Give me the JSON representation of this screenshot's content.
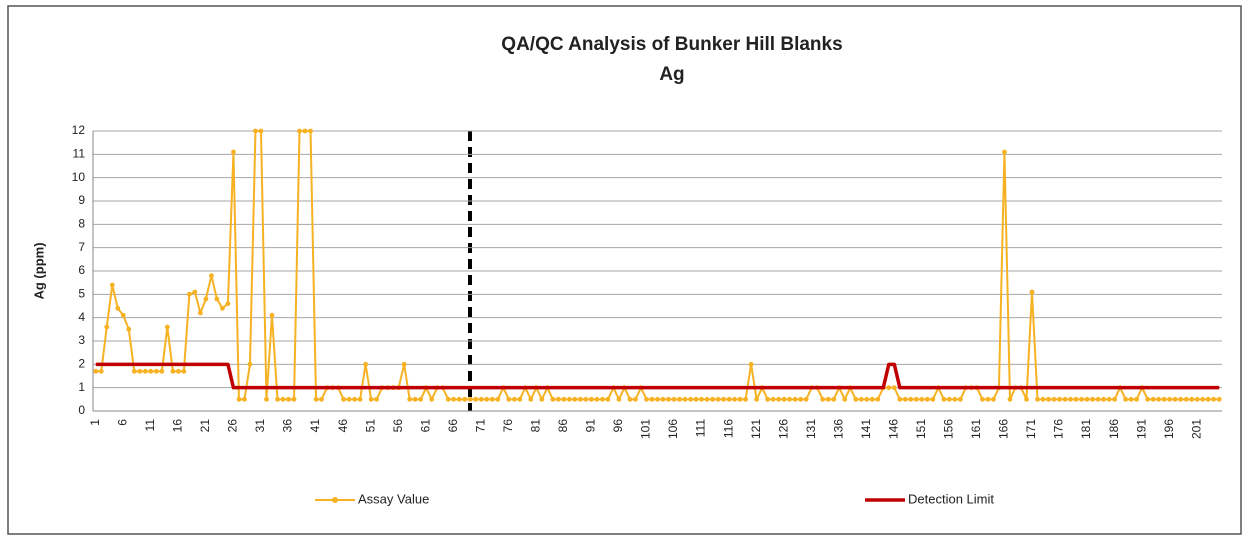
{
  "chart_data": {
    "type": "line",
    "title": "QA/QC Analysis of Bunker Hill Blanks",
    "subtitle": "Ag",
    "y_label": "Ag (ppm)",
    "ylim": [
      0,
      12
    ],
    "yticks": [
      0,
      1,
      2,
      3,
      4,
      5,
      6,
      7,
      8,
      9,
      10,
      11,
      12
    ],
    "grid": true,
    "legend": "bottom",
    "categories": [
      1,
      null,
      null,
      null,
      null,
      6,
      null,
      null,
      null,
      null,
      11,
      null,
      null,
      null,
      null,
      16,
      null,
      null,
      null,
      null,
      21,
      null,
      null,
      null,
      null,
      26,
      null,
      null,
      null,
      null,
      31,
      null,
      null,
      null,
      null,
      36,
      null,
      null,
      null,
      null,
      41,
      null,
      null,
      null,
      null,
      46,
      null,
      null,
      null,
      null,
      51,
      null,
      null,
      null,
      null,
      56,
      null,
      null,
      null,
      null,
      61,
      null,
      null,
      null,
      null,
      66,
      null,
      null,
      null,
      null,
      71,
      null,
      null,
      null,
      null,
      76,
      null,
      null,
      null,
      null,
      81,
      null,
      null,
      null,
      null,
      86,
      null,
      null,
      null,
      null,
      91,
      null,
      null,
      null,
      null,
      96,
      null,
      null,
      null,
      null,
      101,
      null,
      null,
      null,
      null,
      106,
      null,
      null,
      null,
      null,
      111,
      null,
      null,
      null,
      null,
      116,
      null,
      null,
      null,
      null,
      121,
      null,
      null,
      null,
      null,
      126,
      null,
      null,
      null,
      null,
      131,
      null,
      null,
      null,
      null,
      136,
      null,
      null,
      null,
      null,
      141,
      null,
      null,
      null,
      null,
      146,
      null,
      null,
      null,
      null,
      151,
      null,
      null,
      null,
      null,
      156,
      null,
      null,
      null,
      null,
      161,
      null,
      null,
      null,
      null,
      166,
      null,
      null,
      null,
      null,
      171,
      null,
      null,
      null,
      null,
      176,
      null,
      null,
      null,
      null,
      181,
      null,
      null,
      null,
      null,
      186,
      null,
      null,
      null,
      null,
      191,
      null,
      null,
      null,
      null,
      196,
      null,
      null,
      null,
      null,
      201,
      null,
      null,
      null,
      null
    ],
    "series": [
      {
        "name": "Assay Value",
        "color": "#f7b224",
        "marker": true,
        "values": [
          1.7,
          1.7,
          3.6,
          5.4,
          4.4,
          4.1,
          3.5,
          1.7,
          1.7,
          1.7,
          1.7,
          1.7,
          1.7,
          3.6,
          1.7,
          1.7,
          1.7,
          5.0,
          5.1,
          4.2,
          4.8,
          5.8,
          4.8,
          4.4,
          4.6,
          11.1,
          0.5,
          0.5,
          2,
          12,
          12,
          0.5,
          4.1,
          0.5,
          0.5,
          0.5,
          0.5,
          12,
          12,
          12,
          0.5,
          0.5,
          1,
          1,
          1,
          0.5,
          0.5,
          0.5,
          0.5,
          2,
          0.5,
          0.5,
          1,
          1,
          1,
          1,
          2,
          0.5,
          0.5,
          0.5,
          1,
          0.5,
          1,
          1,
          0.5,
          0.5,
          0.5,
          0.5,
          0.5,
          0.5,
          0.5,
          0.5,
          0.5,
          0.5,
          1,
          0.5,
          0.5,
          0.5,
          1,
          0.5,
          1,
          0.5,
          1,
          0.5,
          0.5,
          0.5,
          0.5,
          0.5,
          0.5,
          0.5,
          0.5,
          0.5,
          0.5,
          0.5,
          1,
          0.5,
          1,
          0.5,
          0.5,
          1,
          0.5,
          0.5,
          0.5,
          0.5,
          0.5,
          0.5,
          0.5,
          0.5,
          0.5,
          0.5,
          0.5,
          0.5,
          0.5,
          0.5,
          0.5,
          0.5,
          0.5,
          0.5,
          0.5,
          2,
          0.5,
          1,
          0.5,
          0.5,
          0.5,
          0.5,
          0.5,
          0.5,
          0.5,
          0.5,
          1,
          1,
          0.5,
          0.5,
          0.5,
          1,
          0.5,
          1,
          0.5,
          0.5,
          0.5,
          0.5,
          0.5,
          1,
          1,
          1,
          0.5,
          0.5,
          0.5,
          0.5,
          0.5,
          0.5,
          0.5,
          1,
          0.5,
          0.5,
          0.5,
          0.5,
          1,
          1,
          1,
          0.5,
          0.5,
          0.5,
          1,
          11.1,
          0.5,
          1,
          1,
          0.5,
          5.1,
          0.5,
          0.5,
          0.5,
          0.5,
          0.5,
          0.5,
          0.5,
          0.5,
          0.5,
          0.5,
          0.5,
          0.5,
          0.5,
          0.5,
          0.5,
          1,
          0.5,
          0.5,
          0.5,
          1,
          0.5,
          0.5,
          0.5,
          0.5,
          0.5,
          0.5,
          0.5,
          0.5,
          0.5,
          0.5,
          0.5,
          0.5,
          0.5,
          0.5
        ]
      },
      {
        "name": "Detection Limit",
        "color": "#c00000",
        "marker": false,
        "values": [
          2,
          2,
          2,
          2,
          2,
          2,
          2,
          2,
          2,
          2,
          2,
          2,
          2,
          2,
          2,
          2,
          2,
          2,
          2,
          2,
          2,
          2,
          2,
          2,
          2,
          1,
          1,
          1,
          1,
          1,
          1,
          1,
          1,
          1,
          1,
          1,
          1,
          1,
          1,
          1,
          1,
          1,
          1,
          1,
          1,
          1,
          1,
          1,
          1,
          1,
          1,
          1,
          1,
          1,
          1,
          1,
          1,
          1,
          1,
          1,
          1,
          1,
          1,
          1,
          1,
          1,
          1,
          1,
          1,
          1,
          1,
          1,
          1,
          1,
          1,
          1,
          1,
          1,
          1,
          1,
          1,
          1,
          1,
          1,
          1,
          1,
          1,
          1,
          1,
          1,
          1,
          1,
          1,
          1,
          1,
          1,
          1,
          1,
          1,
          1,
          1,
          1,
          1,
          1,
          1,
          1,
          1,
          1,
          1,
          1,
          1,
          1,
          1,
          1,
          1,
          1,
          1,
          1,
          1,
          1,
          1,
          1,
          1,
          1,
          1,
          1,
          1,
          1,
          1,
          1,
          1,
          1,
          1,
          1,
          1,
          1,
          1,
          1,
          1,
          1,
          1,
          1,
          1,
          1,
          2,
          2,
          1,
          1,
          1,
          1,
          1,
          1,
          1,
          1,
          1,
          1,
          1,
          1,
          1,
          1,
          1,
          1,
          1,
          1,
          1,
          1,
          1,
          1,
          1,
          1,
          1,
          1,
          1,
          1,
          1,
          1,
          1,
          1,
          1,
          1,
          1,
          1,
          1,
          1,
          1,
          1,
          1,
          1,
          1,
          1,
          1,
          1,
          1,
          1,
          1,
          1,
          1,
          1,
          1,
          1,
          1,
          1,
          1,
          1,
          1
        ]
      }
    ]
  }
}
